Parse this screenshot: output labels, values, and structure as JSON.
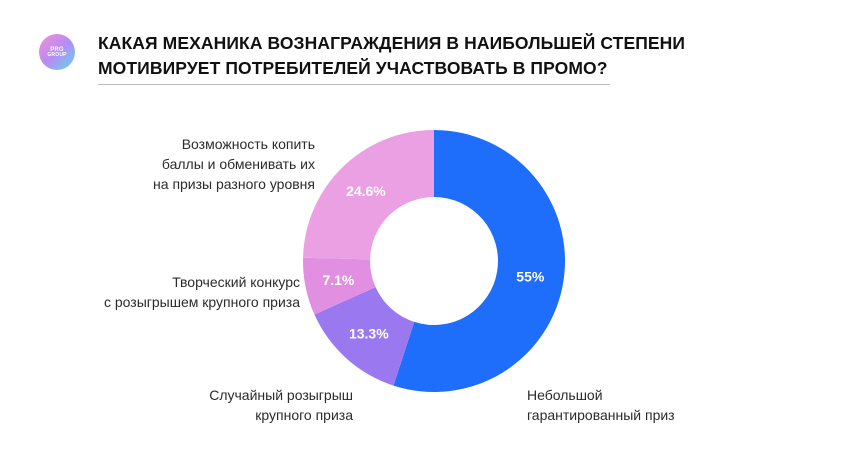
{
  "logo": {
    "line1": "PRG",
    "line2": "GROUP"
  },
  "title": "КАКАЯ МЕХАНИКА ВОЗНАГРАЖДЕНИЯ В НАИБОЛЬШЕЙ СТЕПЕНИ МОТИВИРУЕТ ПОТРЕБИТЕЛЕЙ УЧАСТВОВАТЬ В ПРОМО?",
  "chart_data": {
    "type": "pie",
    "donut": true,
    "legend": "none",
    "slices": [
      {
        "label": "Небольшой\nгарантированный приз",
        "value": 55,
        "display": "55%",
        "color": "#1f6dfb"
      },
      {
        "label": "Случайный розыгрыш\nкрупного приза",
        "value": 13.3,
        "display": "13.3%",
        "color": "#9a78f0"
      },
      {
        "label": "Творческий конкурс\nс розыгрышем крупного приза",
        "value": 7.1,
        "display": "7.1%",
        "color": "#e18fe0"
      },
      {
        "label": "Возможность копить\nбаллы и обменивать их\nна призы разного уровня",
        "value": 24.6,
        "display": "24.6%",
        "color": "#eba0e4"
      }
    ]
  }
}
